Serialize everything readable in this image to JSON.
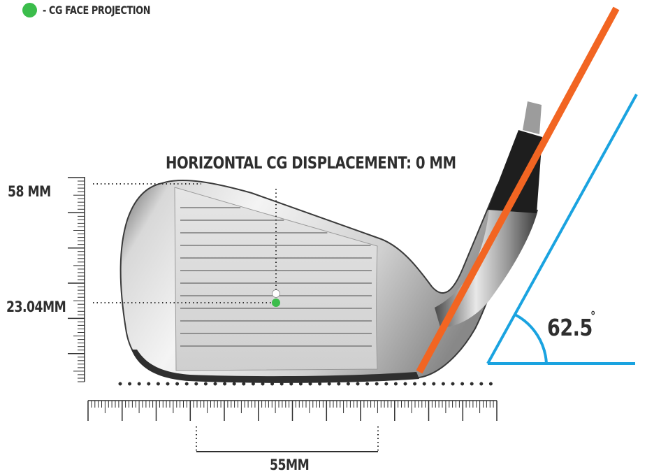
{
  "legend": {
    "text": "- CG FACE PROJECTION",
    "color": "#3bbd4b"
  },
  "labels": {
    "horizontal_cg": "HORIZONTAL CG DISPLACEMENT: 0 MM",
    "height_top": "58 MM",
    "height_cg": "23.04MM",
    "width": "55MM",
    "lie_angle": "62.5",
    "degree": "°"
  },
  "colors": {
    "shaft_line": "#f26522",
    "angle_lines": "#1aa3e0",
    "cg_dot": "#3bbd4b",
    "text": "#2e2e2e"
  }
}
